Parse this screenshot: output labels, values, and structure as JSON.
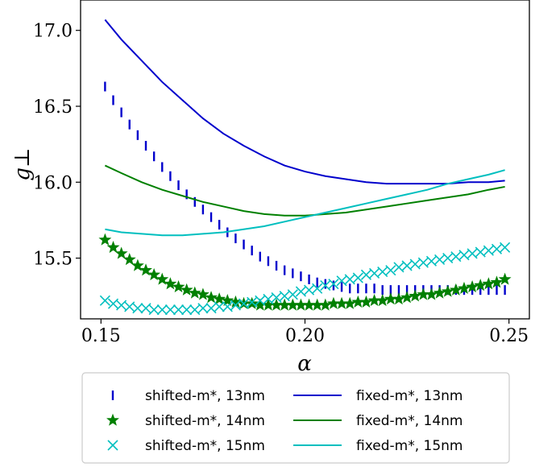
{
  "chart_data": {
    "type": "line",
    "xlabel": "α",
    "ylabel": "g⊥",
    "xlim": [
      0.145,
      0.255
    ],
    "ylim": [
      15.1,
      17.2
    ],
    "x_ticks": [
      0.15,
      0.2,
      0.25
    ],
    "x_tick_labels": [
      "0.15",
      "0.20",
      "0.25"
    ],
    "y_ticks": [
      15.5,
      16.0,
      16.5,
      17.0
    ],
    "y_tick_labels": [
      "15.5",
      "16.0",
      "16.5",
      "17.0"
    ],
    "grid": false,
    "legend_placement": "below",
    "series": [
      {
        "name": "shifted-m*, 13nm",
        "color": "#0000cc",
        "marker": "vline",
        "line": false,
        "x": [
          0.151,
          0.153,
          0.155,
          0.157,
          0.159,
          0.161,
          0.163,
          0.165,
          0.167,
          0.169,
          0.171,
          0.173,
          0.175,
          0.177,
          0.179,
          0.181,
          0.183,
          0.185,
          0.187,
          0.189,
          0.191,
          0.193,
          0.195,
          0.197,
          0.199,
          0.201,
          0.203,
          0.205,
          0.207,
          0.209,
          0.211,
          0.213,
          0.215,
          0.217,
          0.219,
          0.221,
          0.223,
          0.225,
          0.227,
          0.229,
          0.231,
          0.233,
          0.235,
          0.237,
          0.239,
          0.241,
          0.243,
          0.245,
          0.247,
          0.249
        ],
        "y": [
          16.63,
          16.54,
          16.46,
          16.38,
          16.31,
          16.24,
          16.17,
          16.1,
          16.04,
          15.98,
          15.92,
          15.87,
          15.82,
          15.77,
          15.72,
          15.67,
          15.63,
          15.59,
          15.55,
          15.51,
          15.48,
          15.45,
          15.42,
          15.4,
          15.38,
          15.36,
          15.34,
          15.33,
          15.32,
          15.31,
          15.3,
          15.3,
          15.3,
          15.3,
          15.29,
          15.29,
          15.29,
          15.29,
          15.29,
          15.29,
          15.29,
          15.29,
          15.29,
          15.29,
          15.29,
          15.29,
          15.29,
          15.29,
          15.29,
          15.29
        ]
      },
      {
        "name": "shifted-m*, 14nm",
        "color": "#008000",
        "marker": "star",
        "line": false,
        "x": [
          0.151,
          0.153,
          0.155,
          0.157,
          0.159,
          0.161,
          0.163,
          0.165,
          0.167,
          0.169,
          0.171,
          0.173,
          0.175,
          0.177,
          0.179,
          0.181,
          0.183,
          0.185,
          0.187,
          0.189,
          0.191,
          0.193,
          0.195,
          0.197,
          0.199,
          0.201,
          0.203,
          0.205,
          0.207,
          0.209,
          0.211,
          0.213,
          0.215,
          0.217,
          0.219,
          0.221,
          0.223,
          0.225,
          0.227,
          0.229,
          0.231,
          0.233,
          0.235,
          0.237,
          0.239,
          0.241,
          0.243,
          0.245,
          0.247,
          0.249
        ],
        "y": [
          15.62,
          15.57,
          15.53,
          15.49,
          15.45,
          15.42,
          15.39,
          15.36,
          15.33,
          15.31,
          15.29,
          15.27,
          15.26,
          15.24,
          15.23,
          15.22,
          15.21,
          15.2,
          15.2,
          15.19,
          15.19,
          15.19,
          15.19,
          15.19,
          15.19,
          15.19,
          15.19,
          15.19,
          15.2,
          15.2,
          15.2,
          15.21,
          15.21,
          15.22,
          15.22,
          15.23,
          15.23,
          15.24,
          15.25,
          15.26,
          15.26,
          15.27,
          15.28,
          15.29,
          15.3,
          15.31,
          15.32,
          15.33,
          15.34,
          15.36
        ]
      },
      {
        "name": "shifted-m*, 15nm",
        "color": "#00bfbf",
        "marker": "x",
        "line": false,
        "x": [
          0.151,
          0.153,
          0.155,
          0.157,
          0.159,
          0.161,
          0.163,
          0.165,
          0.167,
          0.169,
          0.171,
          0.173,
          0.175,
          0.177,
          0.179,
          0.181,
          0.183,
          0.185,
          0.187,
          0.189,
          0.191,
          0.193,
          0.195,
          0.197,
          0.199,
          0.201,
          0.203,
          0.205,
          0.207,
          0.209,
          0.211,
          0.213,
          0.215,
          0.217,
          0.219,
          0.221,
          0.223,
          0.225,
          0.227,
          0.229,
          0.231,
          0.233,
          0.235,
          0.237,
          0.239,
          0.241,
          0.243,
          0.245,
          0.247,
          0.249
        ],
        "y": [
          15.22,
          15.2,
          15.19,
          15.18,
          15.17,
          15.17,
          15.16,
          15.16,
          15.16,
          15.16,
          15.16,
          15.16,
          15.17,
          15.17,
          15.18,
          15.18,
          15.19,
          15.2,
          15.21,
          15.22,
          15.23,
          15.24,
          15.25,
          15.26,
          15.28,
          15.29,
          15.3,
          15.32,
          15.33,
          15.35,
          15.36,
          15.37,
          15.39,
          15.4,
          15.41,
          15.42,
          15.44,
          15.45,
          15.46,
          15.47,
          15.48,
          15.49,
          15.5,
          15.51,
          15.52,
          15.53,
          15.54,
          15.55,
          15.56,
          15.57
        ]
      },
      {
        "name": "fixed-m*, 13nm",
        "color": "#0000cc",
        "marker": "none",
        "line": true,
        "x": [
          0.151,
          0.155,
          0.16,
          0.165,
          0.17,
          0.175,
          0.18,
          0.185,
          0.19,
          0.195,
          0.2,
          0.205,
          0.21,
          0.215,
          0.22,
          0.225,
          0.23,
          0.235,
          0.24,
          0.245,
          0.249
        ],
        "y": [
          17.07,
          16.94,
          16.8,
          16.66,
          16.54,
          16.42,
          16.32,
          16.24,
          16.17,
          16.11,
          16.07,
          16.04,
          16.02,
          16.0,
          15.99,
          15.99,
          15.99,
          15.99,
          16.0,
          16.0,
          16.01
        ]
      },
      {
        "name": "fixed-m*, 14nm",
        "color": "#008000",
        "marker": "none",
        "line": true,
        "x": [
          0.151,
          0.155,
          0.16,
          0.165,
          0.17,
          0.175,
          0.18,
          0.185,
          0.19,
          0.195,
          0.2,
          0.205,
          0.21,
          0.215,
          0.22,
          0.225,
          0.23,
          0.235,
          0.24,
          0.245,
          0.249
        ],
        "y": [
          16.11,
          16.06,
          16.0,
          15.95,
          15.91,
          15.87,
          15.84,
          15.81,
          15.79,
          15.78,
          15.78,
          15.79,
          15.8,
          15.82,
          15.84,
          15.86,
          15.88,
          15.9,
          15.92,
          15.95,
          15.97
        ]
      },
      {
        "name": "fixed-m*, 15nm",
        "color": "#00bfbf",
        "marker": "none",
        "line": true,
        "x": [
          0.151,
          0.155,
          0.16,
          0.165,
          0.17,
          0.175,
          0.18,
          0.185,
          0.19,
          0.195,
          0.2,
          0.205,
          0.21,
          0.215,
          0.22,
          0.225,
          0.23,
          0.235,
          0.24,
          0.245,
          0.249
        ],
        "y": [
          15.69,
          15.67,
          15.66,
          15.65,
          15.65,
          15.66,
          15.67,
          15.69,
          15.71,
          15.74,
          15.77,
          15.8,
          15.83,
          15.86,
          15.89,
          15.92,
          15.95,
          15.99,
          16.02,
          16.05,
          16.08
        ]
      }
    ],
    "legend": {
      "columns": [
        [
          "shifted-m*, 13nm",
          "shifted-m*, 14nm",
          "shifted-m*, 15nm"
        ],
        [
          "fixed-m*, 13nm",
          "fixed-m*, 14nm",
          "fixed-m*, 15nm"
        ]
      ]
    }
  }
}
